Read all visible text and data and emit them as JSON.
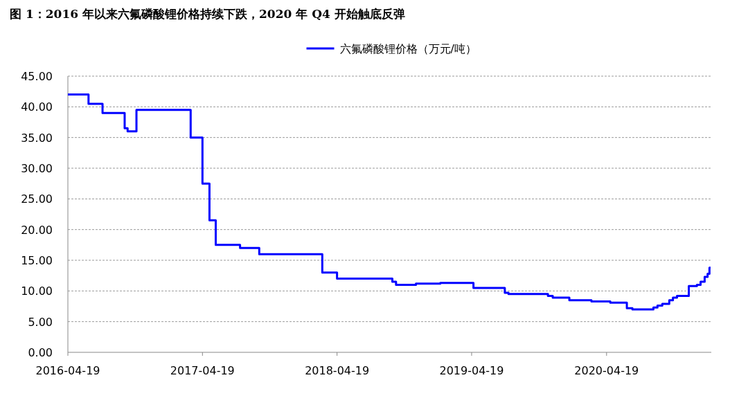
{
  "chart_data": {
    "type": "step",
    "title": "图 1：2016 年以来六氟磷酸锂价格持续下跌，2020 年 Q4 开始触底反弹",
    "x": [
      "2016-04-19",
      "2016-06-14",
      "2016-07-22",
      "2016-09-20",
      "2016-09-28",
      "2016-10-22",
      "2017-03-18",
      "2017-04-19",
      "2017-05-08",
      "2017-05-25",
      "2017-07-30",
      "2017-09-20",
      "2018-03-10",
      "2018-04-19",
      "2018-09-16",
      "2018-09-26",
      "2018-11-19",
      "2019-01-24",
      "2019-04-24",
      "2019-07-18",
      "2019-07-28",
      "2019-11-12",
      "2019-11-25",
      "2020-01-09",
      "2020-03-09",
      "2020-04-29",
      "2020-06-13",
      "2020-06-28",
      "2020-08-24",
      "2020-09-04",
      "2020-09-17",
      "2020-10-06",
      "2020-10-16",
      "2020-10-27",
      "2020-11-28",
      "2020-12-20",
      "2020-12-30",
      "2021-01-10",
      "2021-01-18",
      "2021-01-23",
      "2021-01-26"
    ],
    "series": [
      {
        "name": "六氟磷酸锂价格（万元/吨）",
        "color": "#0000ff",
        "values": [
          42,
          40.5,
          39,
          36.5,
          36,
          39.5,
          35,
          27.5,
          21.5,
          17.5,
          17,
          16,
          13,
          12,
          11.5,
          11,
          11.2,
          11.3,
          10.5,
          9.7,
          9.5,
          9.2,
          8.9,
          8.5,
          8.3,
          8.1,
          7.2,
          7.0,
          7.3,
          7.6,
          7.9,
          8.5,
          8.9,
          9.2,
          10.8,
          11.0,
          11.5,
          12.3,
          12.8,
          13.8,
          13.8
        ]
      }
    ],
    "xlim": [
      "2016-04-19",
      "2021-01-28"
    ],
    "xticks": [
      "2016-04-19",
      "2017-04-19",
      "2018-04-19",
      "2019-04-19",
      "2020-04-19"
    ],
    "ylim": [
      0,
      45
    ],
    "yticks": [
      {
        "value": 0,
        "label": "0.00"
      },
      {
        "value": 5,
        "label": "5.00"
      },
      {
        "value": 10,
        "label": "10.00"
      },
      {
        "value": 15,
        "label": "15.00"
      },
      {
        "value": 20,
        "label": "20.00"
      },
      {
        "value": 25,
        "label": "25.00"
      },
      {
        "value": 30,
        "label": "30.00"
      },
      {
        "value": 35,
        "label": "35.00"
      },
      {
        "value": 40,
        "label": "40.00"
      },
      {
        "value": 45,
        "label": "45.00"
      }
    ],
    "grid": "y",
    "legend": "top",
    "line_style": "solid"
  }
}
